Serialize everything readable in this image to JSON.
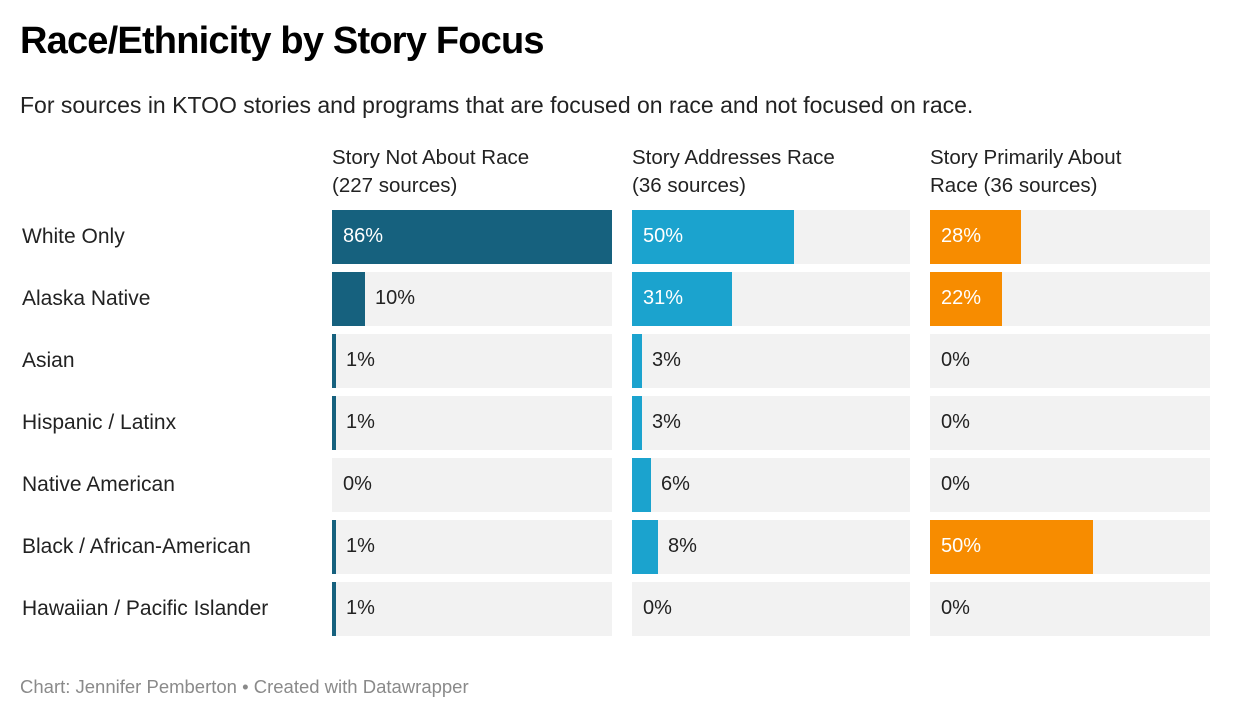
{
  "chart_data": {
    "type": "bar",
    "orientation": "horizontal",
    "layout": "small-multiples",
    "title": "Race/Ethnicity by Story Focus",
    "subtitle": "For sources in KTOO stories and programs that are focused on race and not focused on race.",
    "categories": [
      "White Only",
      "Alaska Native",
      "Asian",
      "Hispanic / Latinx",
      "Native American",
      "Black / African-American",
      "Hawaiian / Pacific Islander"
    ],
    "xlim": [
      0,
      100
    ],
    "unit": "%",
    "series": [
      {
        "name": "Story Not About Race\n(227 sources)",
        "color": "#16617e",
        "values": [
          86,
          10,
          1,
          1,
          0,
          1,
          1
        ]
      },
      {
        "name": "Story Addresses Race\n (36 sources)",
        "color": "#1ba3ce",
        "values": [
          50,
          31,
          3,
          3,
          6,
          8,
          0
        ]
      },
      {
        "name": "Story Primarily About\nRace (36 sources)",
        "color": "#f78c00",
        "values": [
          28,
          22,
          0,
          0,
          0,
          50,
          0
        ]
      }
    ],
    "track_color": "#f2f2f2",
    "grid": false,
    "legend": "none",
    "footer": "Chart: Jennifer Pemberton • Created with Datawrapper"
  }
}
